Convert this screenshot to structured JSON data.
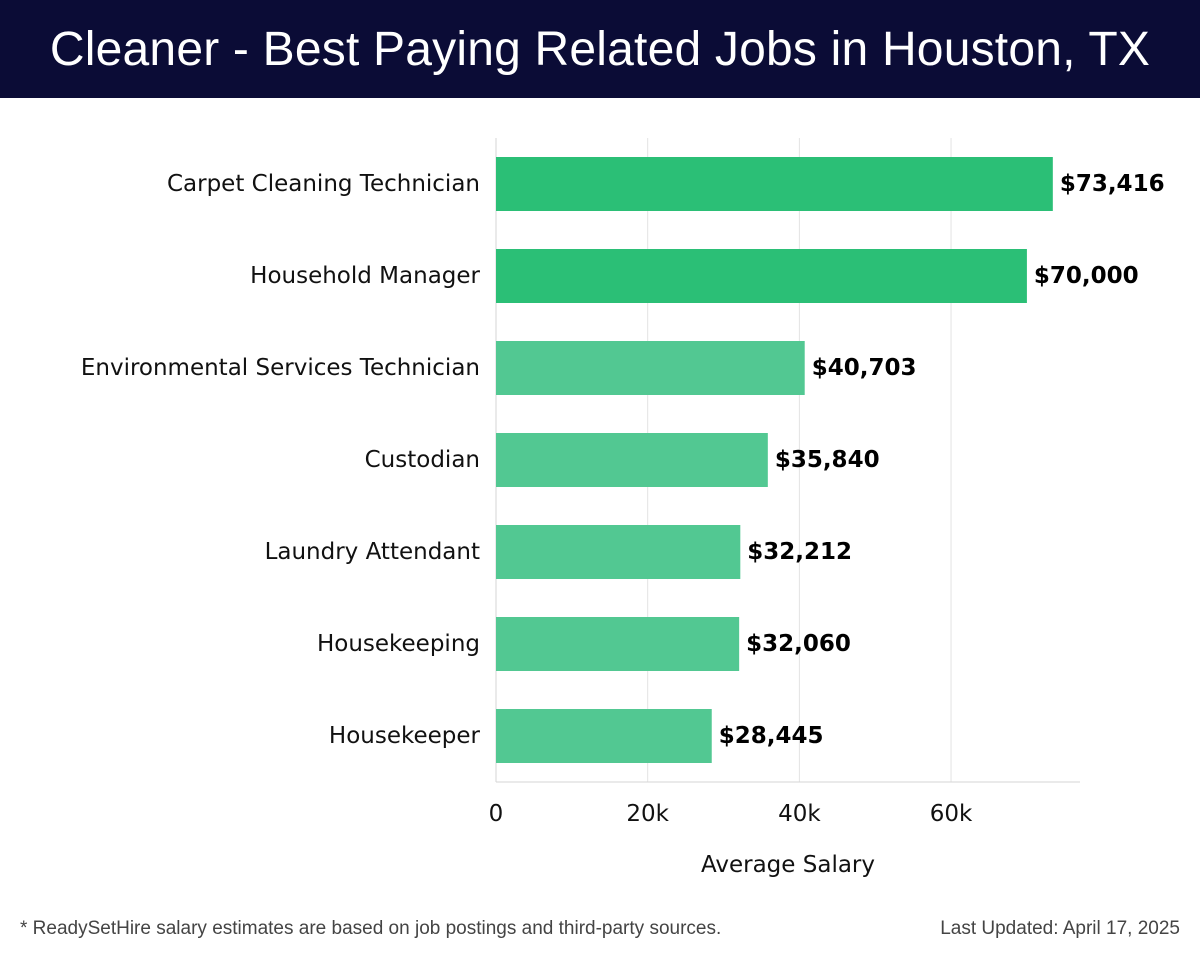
{
  "header": {
    "title": "Cleaner - Best Paying Related Jobs in Houston, TX"
  },
  "chart_data": {
    "type": "bar",
    "orientation": "horizontal",
    "categories": [
      "Carpet Cleaning Technician",
      "Household Manager",
      "Environmental Services Technician",
      "Custodian",
      "Laundry Attendant",
      "Housekeeping",
      "Housekeeper"
    ],
    "values": [
      73416,
      70000,
      40703,
      35840,
      32212,
      32060,
      28445
    ],
    "value_labels": [
      "$73,416",
      "$70,000",
      "$40,703",
      "$35,840",
      "$32,212",
      "$32,060",
      "$28,445"
    ],
    "highlight_colors": [
      "#2bbf76",
      "#2bbf76",
      "#52c892",
      "#52c892",
      "#52c892",
      "#52c892",
      "#52c892"
    ],
    "xticks": [
      0,
      20000,
      40000,
      60000
    ],
    "xtick_labels": [
      "0",
      "20k",
      "40k",
      "60k"
    ],
    "xlim": [
      0,
      77000
    ],
    "xlabel": "Average Salary",
    "ylabel": "",
    "grid": true
  },
  "footer": {
    "note": "* ReadySetHire salary estimates are based on job postings and third-party sources.",
    "updated": "Last Updated: April 17, 2025"
  }
}
